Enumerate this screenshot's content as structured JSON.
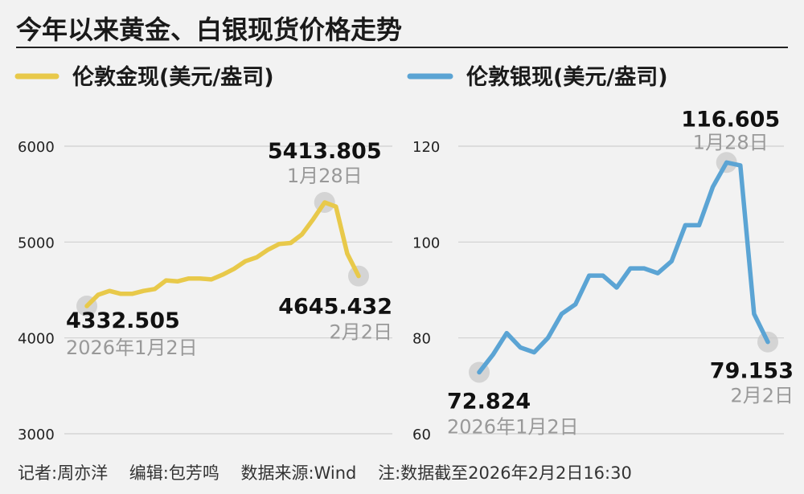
{
  "title": "今年以来黄金、白银现货价格走势",
  "footer": {
    "reporter": "记者:周亦洋",
    "editor": "编辑:包芳鸣",
    "source": "数据来源:Wind",
    "note": "注:数据截至2026年2月2日16:30"
  },
  "chart_data": [
    {
      "type": "line",
      "series": [
        {
          "name": "伦敦金现(美元/盎司)",
          "color": "#e8c94a",
          "values": [
            4332.505,
            4450,
            4490,
            4460,
            4460,
            4490,
            4510,
            4600,
            4590,
            4620,
            4620,
            4610,
            4660,
            4720,
            4800,
            4840,
            4920,
            4980,
            4990,
            5080,
            5240,
            5413.805,
            5370,
            4880,
            4645.432
          ]
        }
      ],
      "ylim": [
        3000,
        6000
      ],
      "yticks": [
        3000,
        4000,
        5000,
        6000
      ],
      "annotations": [
        {
          "point": 0,
          "value": "4332.505",
          "date": "2026年1月2日"
        },
        {
          "point": 21,
          "value": "5413.805",
          "date": "1月28日"
        },
        {
          "point": 24,
          "value": "4645.432",
          "date": "2月2日"
        }
      ]
    },
    {
      "type": "line",
      "series": [
        {
          "name": "伦敦银现(美元/盎司)",
          "color": "#5ba4d4",
          "values": [
            72.824,
            76.5,
            81,
            78,
            77,
            80,
            85,
            87,
            93,
            93,
            90.5,
            94.5,
            94.5,
            93.5,
            96,
            103.5,
            103.5,
            111.5,
            116.605,
            116,
            85,
            79.153
          ]
        }
      ],
      "ylim": [
        60,
        120
      ],
      "yticks": [
        60,
        80,
        100,
        120
      ],
      "annotations": [
        {
          "point": 0,
          "value": "72.824",
          "date": "2026年1月2日"
        },
        {
          "point": 18,
          "value": "116.605",
          "date": "1月28日"
        },
        {
          "point": 21,
          "value": "79.153",
          "date": "2月2日"
        }
      ]
    }
  ]
}
